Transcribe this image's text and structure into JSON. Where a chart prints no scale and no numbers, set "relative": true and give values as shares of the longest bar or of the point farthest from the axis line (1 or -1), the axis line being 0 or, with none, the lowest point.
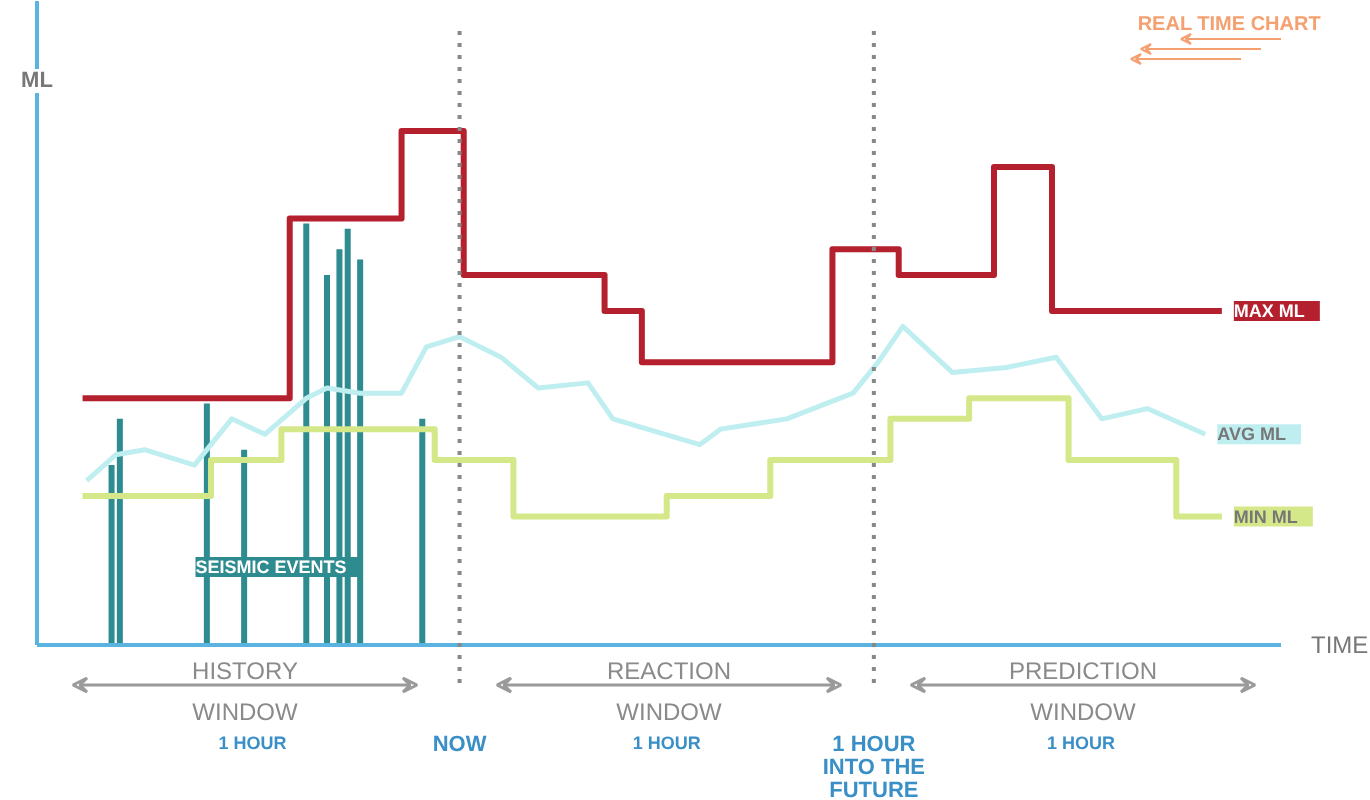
{
  "chart_data": {
    "type": "line",
    "relative": true,
    "ylabel": "ML",
    "xlabel": "TIME",
    "xlim": [
      -1.02,
      2.2
    ],
    "tick_labels": "x",
    "xticks": [
      {
        "value": -0.5,
        "label": "1 HOUR"
      },
      {
        "value": 0,
        "label": "NOW"
      },
      {
        "value": 0.5,
        "label": "1 HOUR"
      },
      {
        "value": 1,
        "label": "1 HOUR\nINTO THE\nFUTURE"
      },
      {
        "value": 1.5,
        "label": "1 HOUR"
      }
    ],
    "annotations": [
      "REAL TIME CHART",
      "HISTORY\nWINDOW",
      "REACTION\nWINDOW",
      "PREDICTION\nWINDOW"
    ],
    "ref_lines": [
      {
        "axis": "x",
        "value": 0,
        "line_style": "dotted"
      },
      {
        "axis": "x",
        "value": 1,
        "line_style": "dotted"
      }
    ],
    "series": [
      {
        "name": "SEISMIC EVENTS",
        "type": "bar",
        "color": "#2e8b8f",
        "x": [
          -0.84,
          -0.82,
          -0.61,
          -0.52,
          -0.37,
          -0.32,
          -0.29,
          -0.27,
          -0.24,
          -0.09
        ],
        "values": [
          0.35,
          0.44,
          0.47,
          0.38,
          0.82,
          0.72,
          0.77,
          0.81,
          0.75,
          0.44
        ]
      },
      {
        "name": "MIN ML",
        "type": "step",
        "color": "#d4e88a",
        "x": [
          -0.91,
          -0.6,
          -0.43,
          -0.06,
          0.13,
          0.5,
          0.75,
          1.04,
          1.23,
          1.47,
          1.73,
          1.84
        ],
        "values": [
          0.29,
          0.36,
          0.42,
          0.36,
          0.25,
          0.29,
          0.36,
          0.44,
          0.48,
          0.36,
          0.25,
          0.25
        ]
      },
      {
        "name": "AVG ML",
        "color": "#bfeef0",
        "x": [
          -0.9,
          -0.83,
          -0.76,
          -0.64,
          -0.55,
          -0.47,
          -0.37,
          -0.32,
          -0.24,
          -0.14,
          -0.08,
          0,
          0.1,
          0.19,
          0.31,
          0.37,
          0.58,
          0.63,
          0.79,
          0.95,
          1.01,
          1.07,
          1.19,
          1.32,
          1.44,
          1.55,
          1.66,
          1.8
        ],
        "values": [
          0.32,
          0.37,
          0.38,
          0.35,
          0.44,
          0.41,
          0.48,
          0.5,
          0.49,
          0.49,
          0.58,
          0.6,
          0.56,
          0.5,
          0.51,
          0.44,
          0.39,
          0.42,
          0.44,
          0.49,
          0.55,
          0.62,
          0.53,
          0.54,
          0.56,
          0.44,
          0.46,
          0.41
        ]
      },
      {
        "name": "MAX ML",
        "type": "step",
        "color": "#b5202e",
        "x": [
          -0.91,
          -0.41,
          -0.14,
          0.01,
          0.35,
          0.44,
          0.9,
          1.06,
          1.29,
          1.43,
          1.84
        ],
        "values": [
          0.48,
          0.83,
          1.0,
          0.72,
          0.65,
          0.55,
          0.77,
          0.72,
          0.93,
          0.65,
          0.65
        ]
      }
    ]
  }
}
